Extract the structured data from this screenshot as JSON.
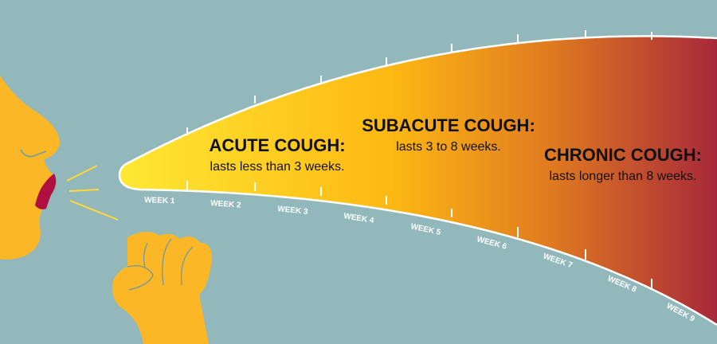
{
  "colors": {
    "background": "#92b8bc",
    "skin": "#fbb726",
    "lips": "#b0103f",
    "gradient": [
      "#ffe833",
      "#fdb913",
      "#e07b20",
      "#a8283a"
    ]
  },
  "phases": [
    {
      "title": "ACUTE COUGH:",
      "desc": "lasts less than 3 weeks."
    },
    {
      "title": "SUBACUTE COUGH:",
      "desc": "lasts 3 to 8 weeks."
    },
    {
      "title": "CHRONIC COUGH:",
      "desc": "lasts longer than 8 weeks."
    }
  ],
  "weeks": [
    "WEEK 1",
    "WEEK 2",
    "WEEK 3",
    "WEEK 4",
    "WEEK 5",
    "WEEK 6",
    "WEEK 7",
    "WEEK 8",
    "WEEK 9"
  ]
}
